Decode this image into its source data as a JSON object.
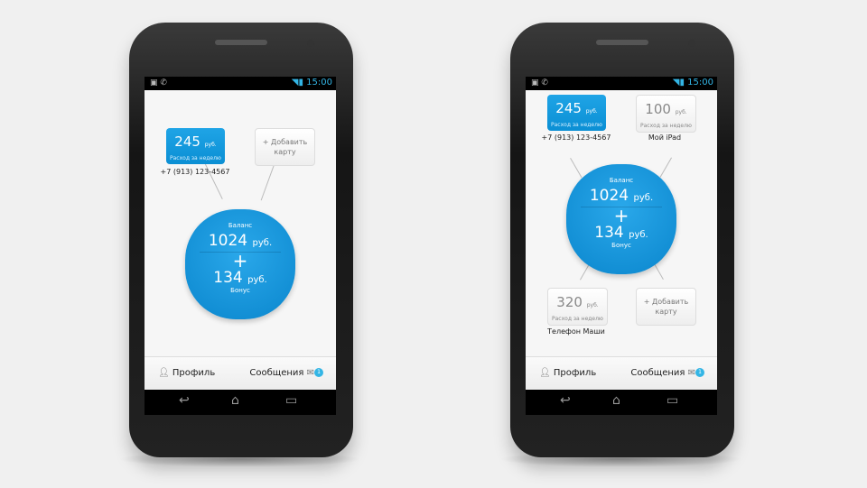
{
  "status": {
    "time": "15:00"
  },
  "common": {
    "balance_label": "Баланс",
    "balance": "1024",
    "currency": "руб.",
    "plus": "+",
    "bonus": "134",
    "bonus_label": "Бонус",
    "week_label": "Расход за неделю",
    "add_card": "+ Добавить карту",
    "profile": "Профиль",
    "messages": "Сообщения",
    "messages_count": "1",
    "accent": "#0b8fd4"
  },
  "left_phone": {
    "cards": [
      {
        "amount": "245",
        "phone": "+7 (913) 123-4567"
      }
    ]
  },
  "right_phone": {
    "cards": [
      {
        "amount": "245",
        "name": "+7 (913) 123-4567"
      },
      {
        "amount": "100",
        "name": "Мой iPad"
      },
      {
        "amount": "320",
        "name": "Телефон Маши"
      }
    ]
  }
}
